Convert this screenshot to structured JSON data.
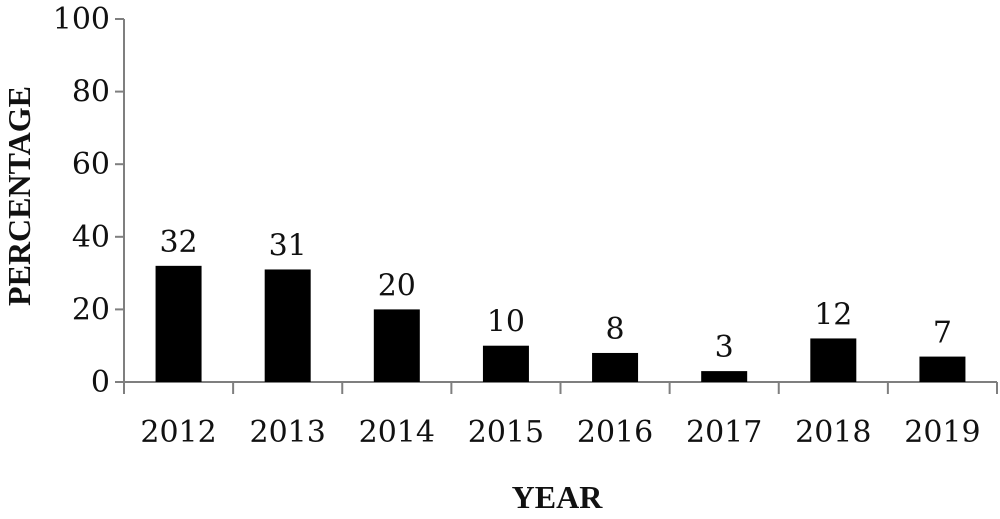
{
  "chart_data": {
    "type": "bar",
    "categories": [
      "2012",
      "2013",
      "2014",
      "2015",
      "2016",
      "2017",
      "2018",
      "2019"
    ],
    "values": [
      32,
      31,
      20,
      10,
      8,
      3,
      12,
      7
    ],
    "title": "",
    "xlabel": "YEAR",
    "ylabel": "PERCENTAGE",
    "ylim": [
      0,
      100
    ],
    "yticks": [
      "0",
      "20",
      "40",
      "60",
      "80",
      "100"
    ],
    "grid": false,
    "legend": "none",
    "data_labels": [
      "32",
      "31",
      "20",
      "10",
      "8",
      "3",
      "12",
      "7"
    ]
  },
  "colors": {
    "bar": "#000000",
    "axis": "#7f7f7f",
    "text": "#111111",
    "background": "#ffffff"
  }
}
